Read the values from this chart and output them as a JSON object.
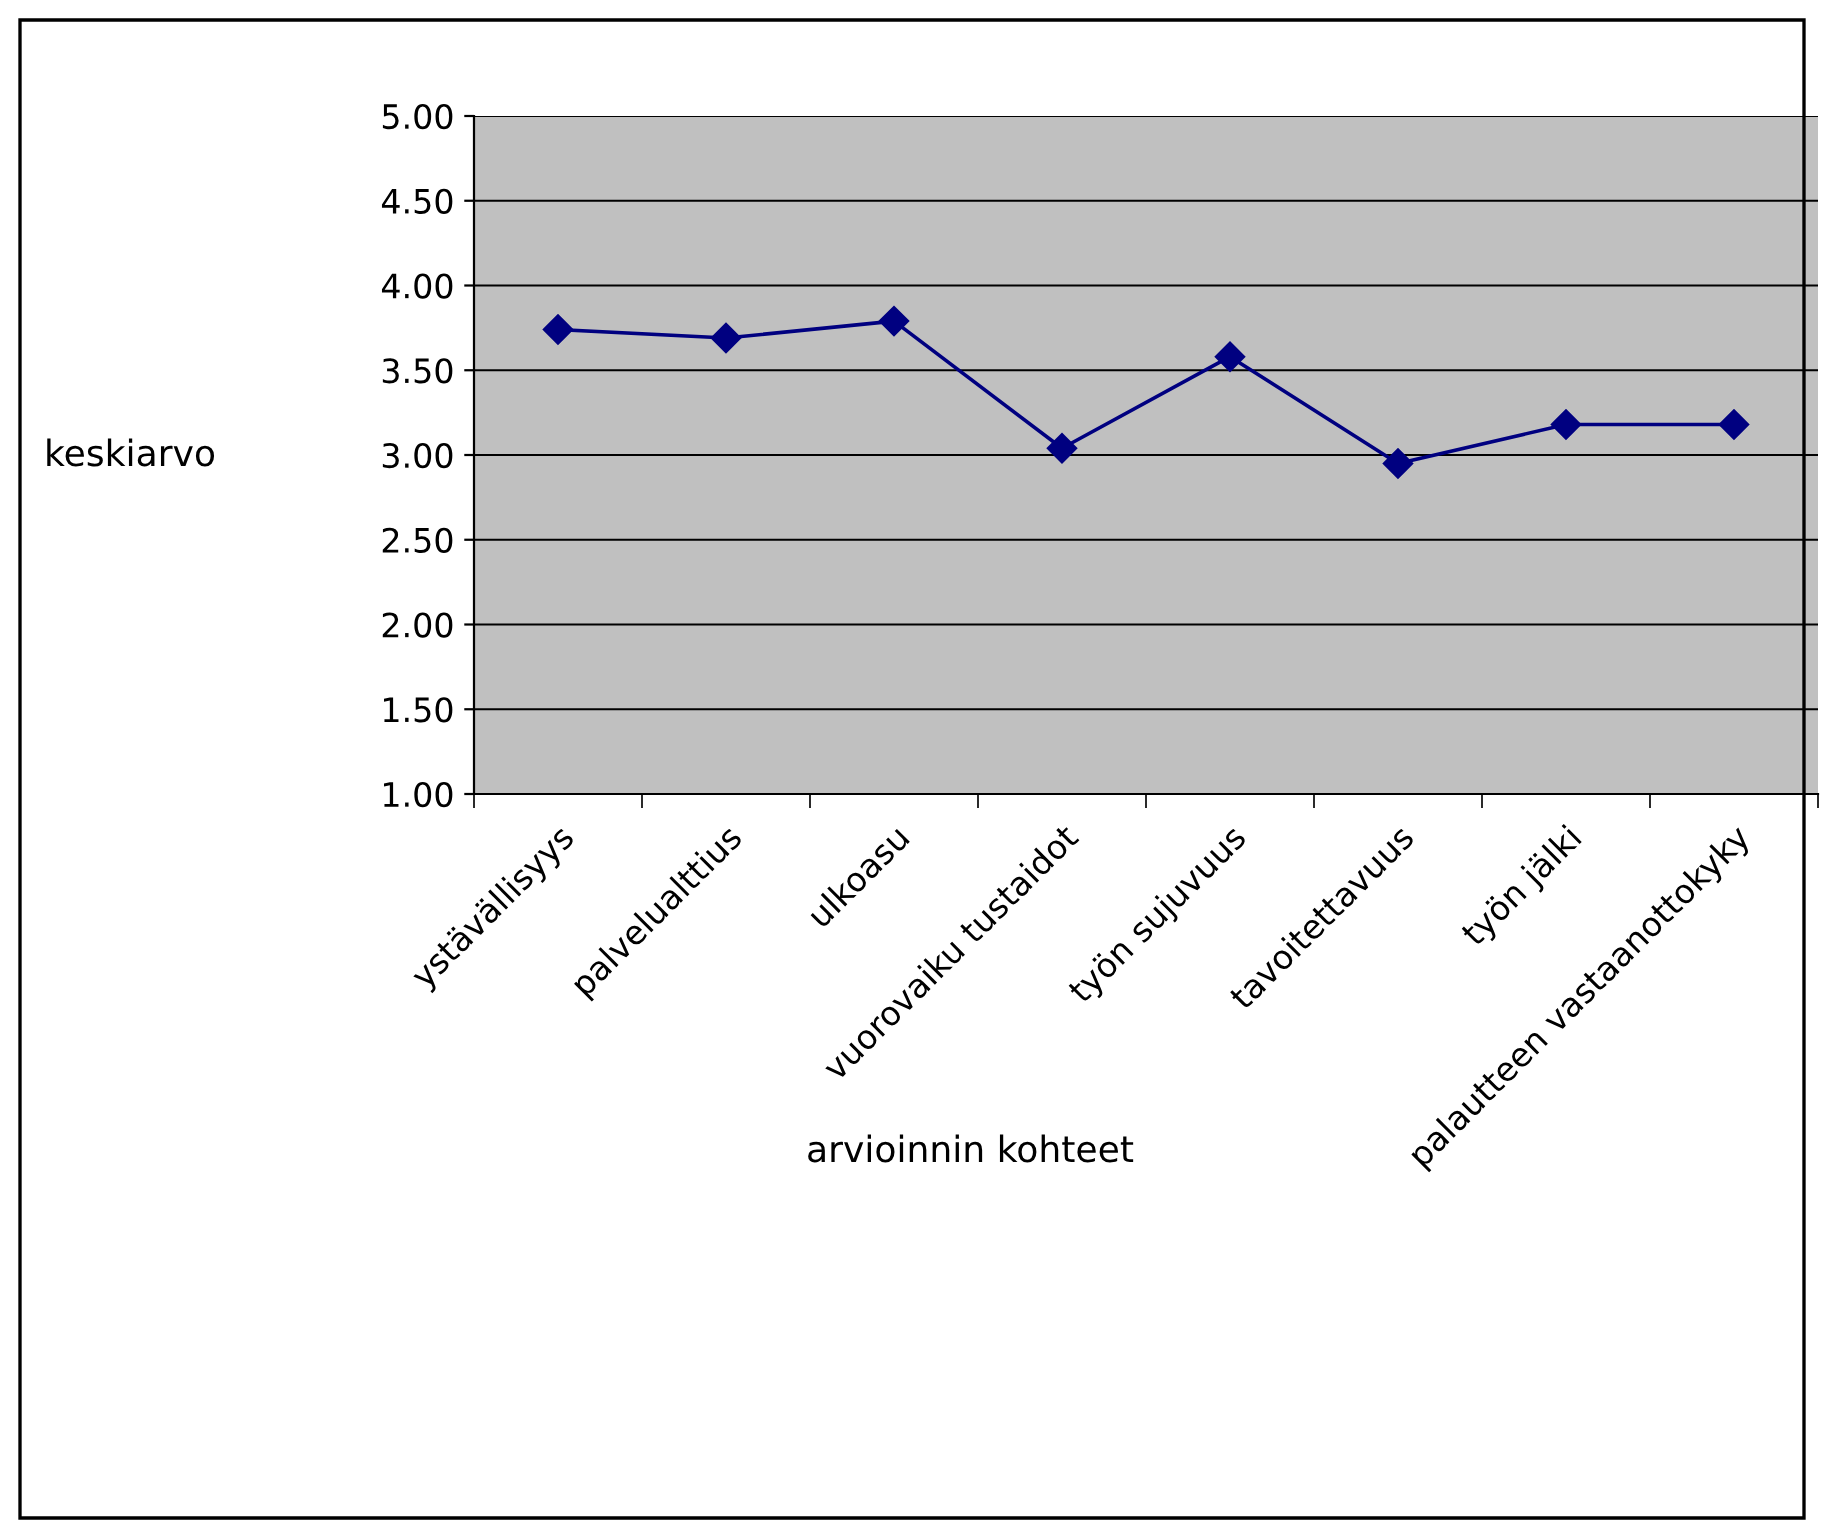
{
  "chart_data": {
    "type": "line",
    "xlabel": "arvioinnin kohteet",
    "ylabel": "keskiarvo",
    "categories": [
      "ystävällisyys",
      "palvelualttius",
      "ulkoasu",
      "vuorovaiku tustaidot",
      "työn sujuvuus",
      "tavoitettavuus",
      "työn jälki",
      "palautteen vastaanottokyky"
    ],
    "series": [
      {
        "color": "#000080",
        "values": [
          3.74,
          3.69,
          3.79,
          3.04,
          3.58,
          2.95,
          3.18,
          3.18
        ]
      }
    ],
    "ylim": [
      1,
      5
    ],
    "yticks": [
      {
        "value": 1,
        "label": "1.00"
      },
      {
        "value": 1.5,
        "label": "1.50"
      },
      {
        "value": 2,
        "label": "2.00"
      },
      {
        "value": 2.5,
        "label": "2.50"
      },
      {
        "value": 3,
        "label": "3.00"
      },
      {
        "value": 3.5,
        "label": "3.50"
      },
      {
        "value": 4,
        "label": "4.00"
      },
      {
        "value": 4.5,
        "label": "4.50"
      },
      {
        "value": 5,
        "label": "5.00"
      }
    ],
    "grid": "y",
    "marker": "diamond",
    "line_style": "solid"
  }
}
